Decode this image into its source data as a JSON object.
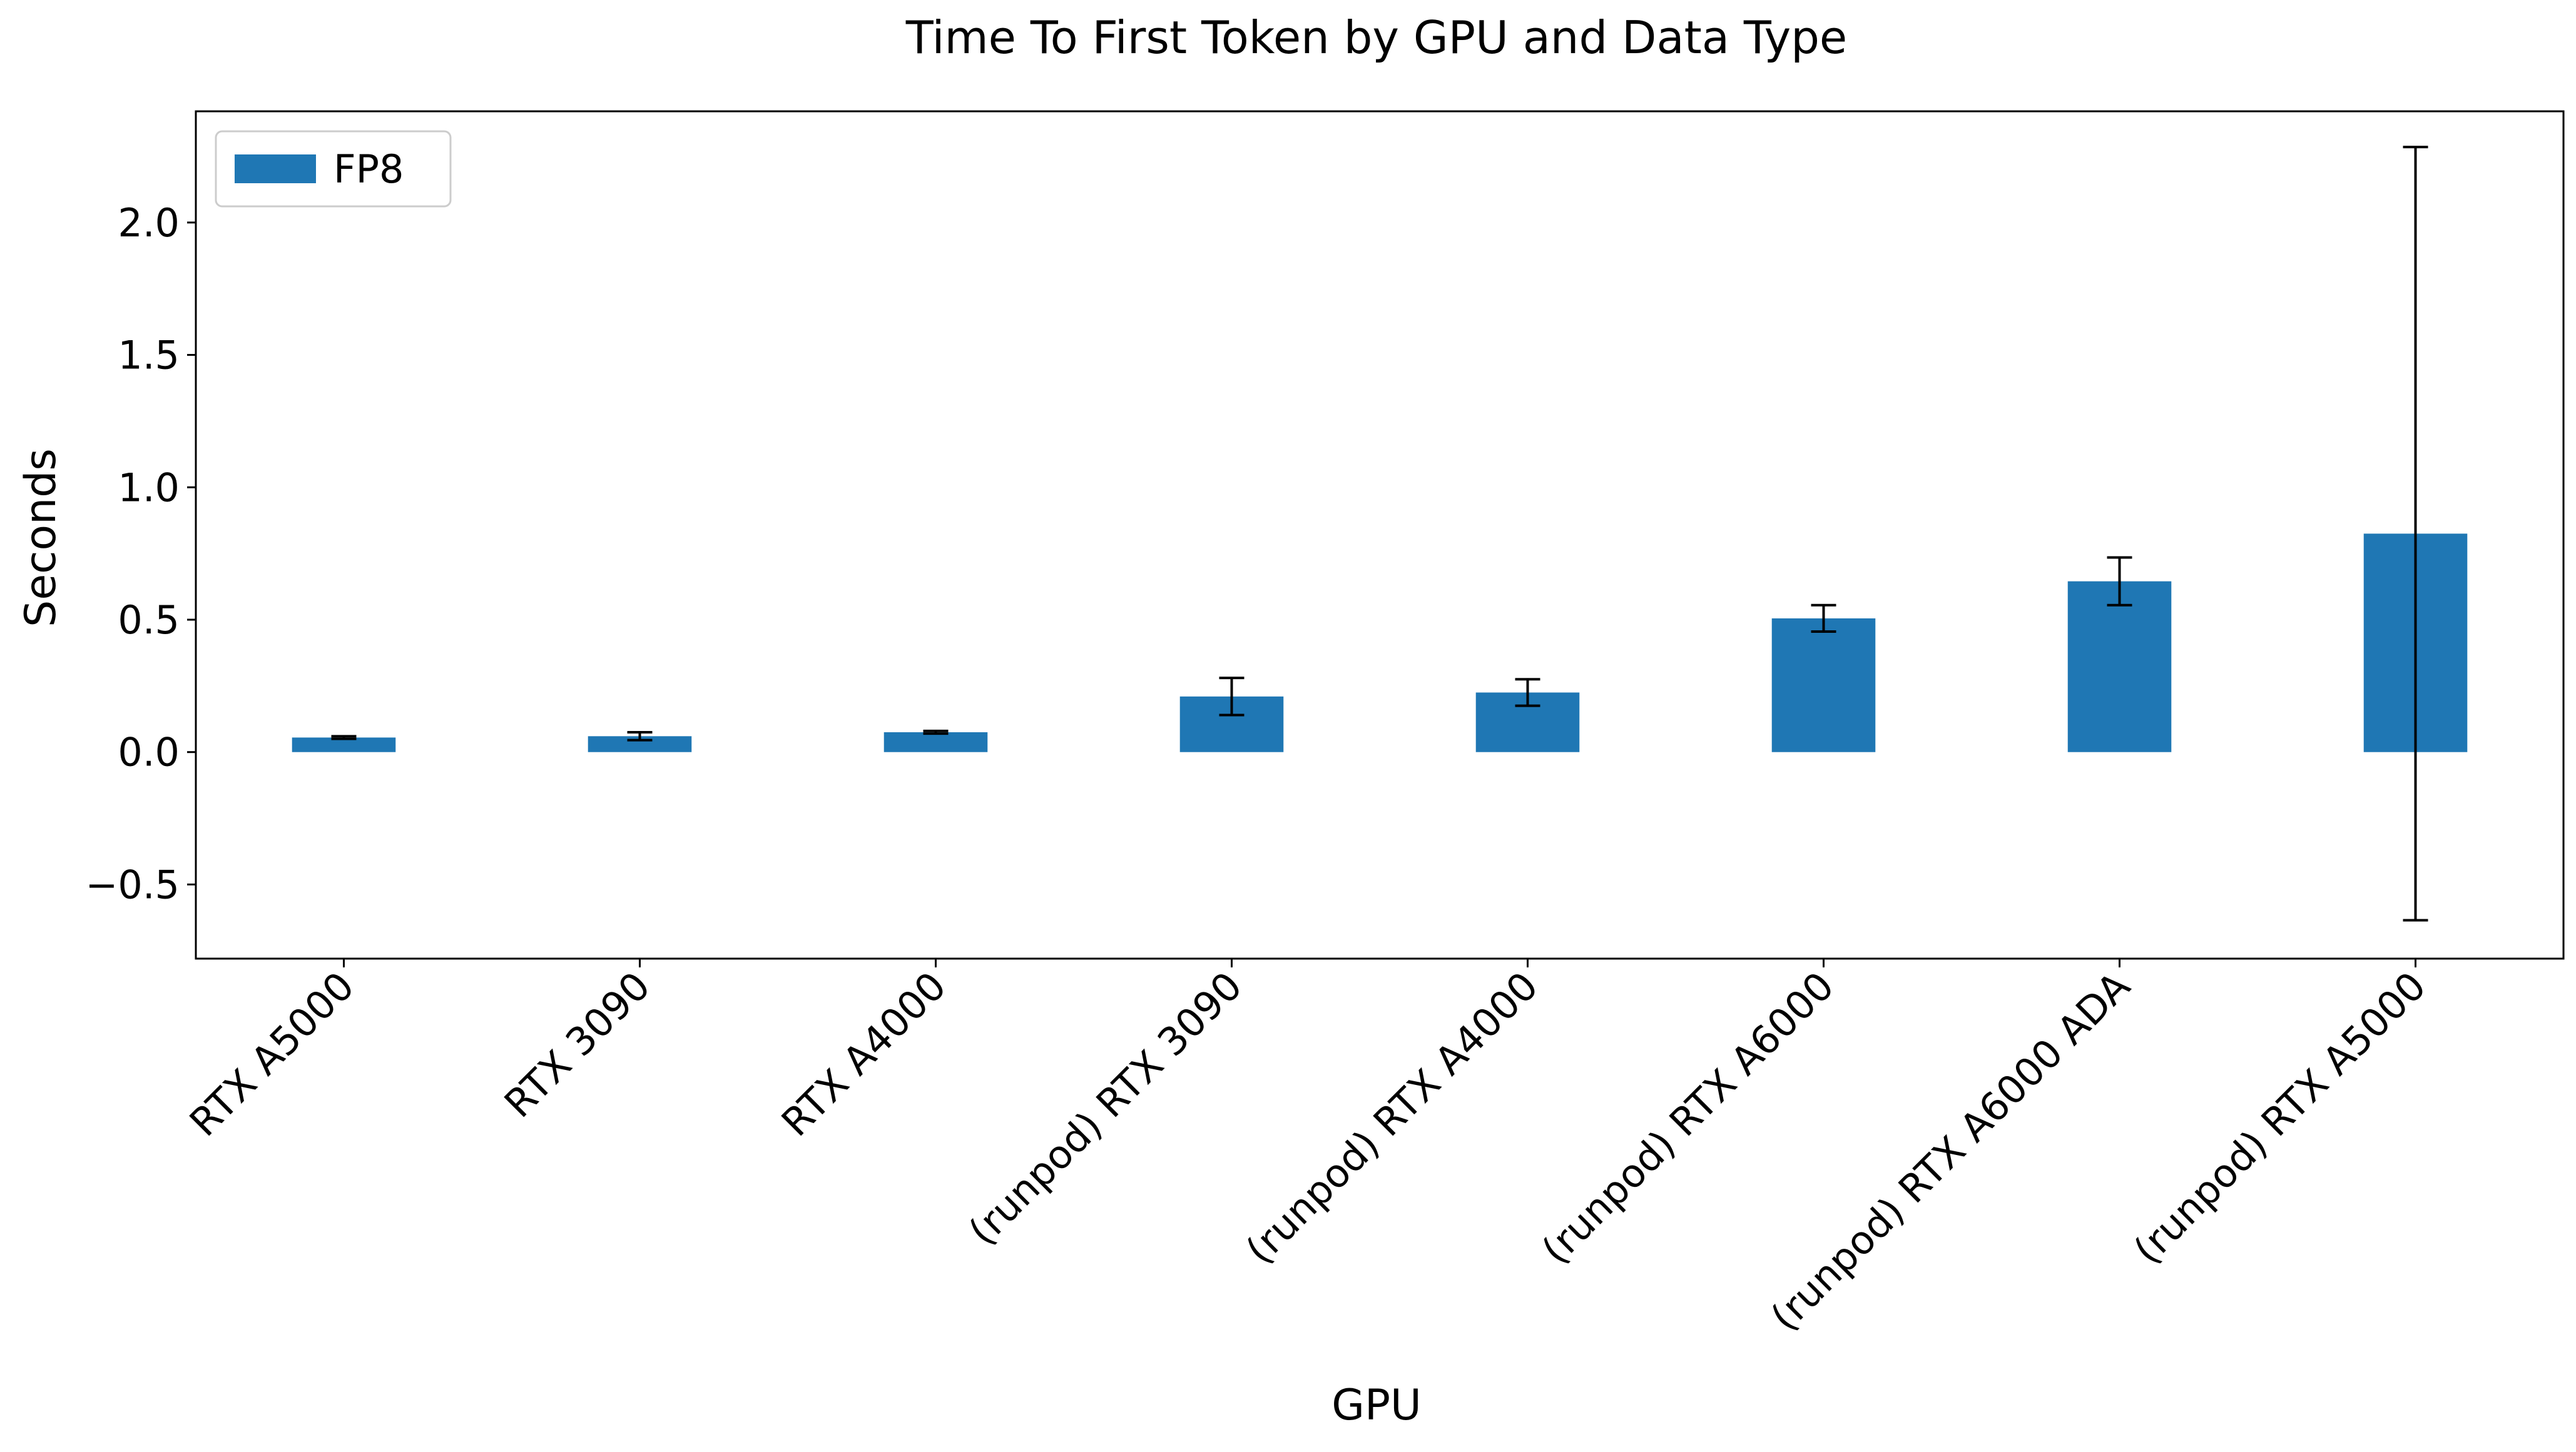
{
  "chart_data": {
    "type": "bar",
    "title": "Time To First Token by GPU and Data Type",
    "xlabel": "GPU",
    "ylabel": "Seconds",
    "categories": [
      "RTX A5000",
      "RTX 3090",
      "RTX A4000",
      "(runpod) RTX 3090",
      "(runpod) RTX A4000",
      "(runpod) RTX A6000",
      "(runpod) RTX A6000 ADA",
      "(runpod) RTX A5000"
    ],
    "series": [
      {
        "name": "FP8",
        "color": "#1f77b4",
        "values": [
          0.055,
          0.06,
          0.075,
          0.21,
          0.225,
          0.505,
          0.645,
          0.825
        ],
        "error": [
          0.005,
          0.015,
          0.005,
          0.07,
          0.05,
          0.05,
          0.09,
          1.46
        ]
      }
    ],
    "ylim": [
      -0.78,
      2.42
    ],
    "yticks": [
      -0.5,
      0.0,
      0.5,
      1.0,
      1.5,
      2.0
    ],
    "ytick_labels": [
      "−0.5",
      "0.0",
      "0.5",
      "1.0",
      "1.5",
      "2.0"
    ],
    "legend_position": "top-left",
    "grid": false
  }
}
